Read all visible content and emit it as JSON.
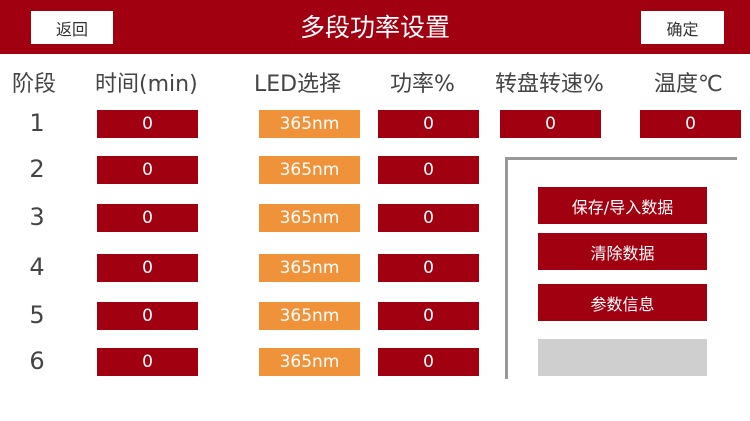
{
  "header": {
    "title": "多段功率设置",
    "back_label": "返回",
    "confirm_label": "确定"
  },
  "columns": {
    "stage": "阶段",
    "time": "时间(min)",
    "led": "LED选择",
    "power": "功率%",
    "turntable": "转盘转速%",
    "temperature": "温度℃"
  },
  "rows": [
    {
      "stage": "1",
      "time": "0",
      "led": "365nm",
      "power": "0"
    },
    {
      "stage": "2",
      "time": "0",
      "led": "365nm",
      "power": "0"
    },
    {
      "stage": "3",
      "time": "0",
      "led": "365nm",
      "power": "0"
    },
    {
      "stage": "4",
      "time": "0",
      "led": "365nm",
      "power": "0"
    },
    {
      "stage": "5",
      "time": "0",
      "led": "365nm",
      "power": "0"
    },
    {
      "stage": "6",
      "time": "0",
      "led": "365nm",
      "power": "0"
    }
  ],
  "turntable_speed": "0",
  "temperature": "0",
  "panel": {
    "save_import": "保存/导入数据",
    "clear": "清除数据",
    "params": "参数信息",
    "blank": ""
  },
  "colors": {
    "primary": "#a00010",
    "led": "#f0923a",
    "disabled": "#cfcfcf"
  }
}
